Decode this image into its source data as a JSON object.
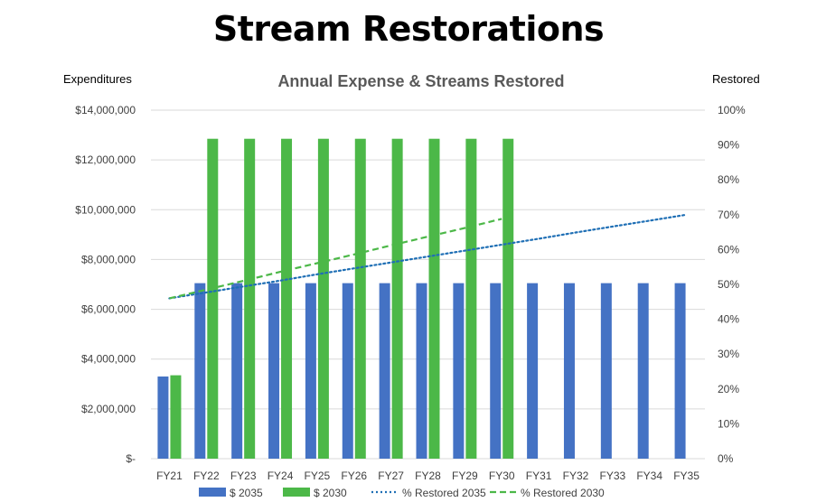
{
  "page": {
    "title": "Stream Restorations"
  },
  "chart_data": {
    "type": "bar",
    "title": "Annual Expense & Streams Restored",
    "ylabel": "Expenditures",
    "y2label": "Restored",
    "categories": [
      "FY21",
      "FY22",
      "FY23",
      "FY24",
      "FY25",
      "FY26",
      "FY27",
      "FY28",
      "FY29",
      "FY30",
      "FY31",
      "FY32",
      "FY33",
      "FY34",
      "FY35"
    ],
    "ylim": [
      0,
      14000000
    ],
    "y2lim": [
      0,
      1.0
    ],
    "y_ticks": [
      "$-",
      "$2,000,000",
      "$4,000,000",
      "$6,000,000",
      "$8,000,000",
      "$10,000,000",
      "$12,000,000",
      "$14,000,000"
    ],
    "y2_ticks": [
      "0%",
      "10%",
      "20%",
      "30%",
      "40%",
      "50%",
      "60%",
      "70%",
      "80%",
      "90%",
      "100%"
    ],
    "grid": true,
    "legend_position": "bottom",
    "series": [
      {
        "name": "$ 2035",
        "type": "bar",
        "color": "#4472C4",
        "values": [
          3300000,
          7050000,
          7050000,
          7050000,
          7050000,
          7050000,
          7050000,
          7050000,
          7050000,
          7050000,
          7050000,
          7050000,
          7050000,
          7050000,
          7050000
        ]
      },
      {
        "name": "$ 2030",
        "type": "bar",
        "color": "#4CB848",
        "values": [
          3350000,
          12850000,
          12850000,
          12850000,
          12850000,
          12850000,
          12850000,
          12850000,
          12850000,
          12850000,
          null,
          null,
          null,
          null,
          null
        ]
      },
      {
        "name": "% Restored 2035",
        "type": "line",
        "axis": "y2",
        "style": "dotted",
        "color": "#1F6FB5",
        "values": [
          0.46,
          0.477,
          0.494,
          0.511,
          0.529,
          0.546,
          0.563,
          0.58,
          0.597,
          0.614,
          0.631,
          0.649,
          0.666,
          0.683,
          0.7
        ]
      },
      {
        "name": "% Restored 2030",
        "type": "line",
        "axis": "y2",
        "style": "dashed",
        "color": "#4CB848",
        "values": [
          0.46,
          0.485,
          0.51,
          0.536,
          0.561,
          0.586,
          0.612,
          0.637,
          0.662,
          0.688,
          null,
          null,
          null,
          null,
          null
        ]
      }
    ]
  }
}
